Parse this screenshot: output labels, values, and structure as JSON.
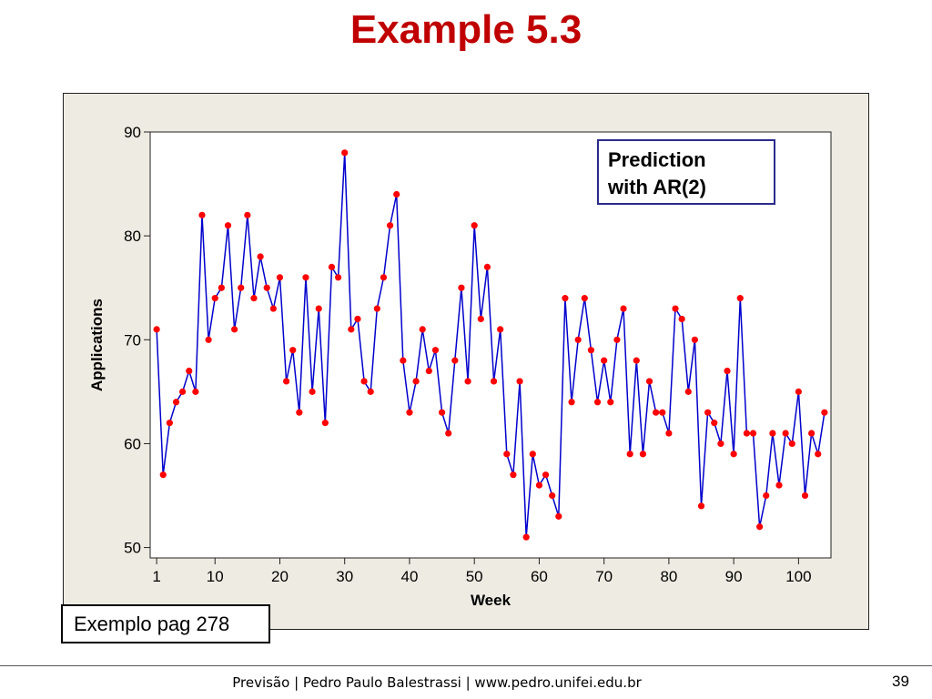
{
  "slide": {
    "title": "Example 5.3",
    "callout_line1": "Prediction",
    "callout_line2": "with AR(2)",
    "note": "Exemplo pag 278",
    "footer": "Previsão | Pedro Paulo Balestrassi | www.pedro.unifei.edu.br",
    "page_number": "39"
  },
  "colors": {
    "title": "#c00000",
    "line": "#0000cc",
    "marker": "#ff0000",
    "frame": "#eeebe2"
  },
  "chart_data": {
    "type": "line",
    "xlabel": "Week",
    "ylabel": "Applications",
    "xlim": [
      0,
      105
    ],
    "ylim": [
      49,
      90
    ],
    "xticks": [
      1,
      10,
      20,
      30,
      40,
      50,
      60,
      70,
      80,
      90,
      100
    ],
    "yticks": [
      50,
      60,
      70,
      80,
      90
    ],
    "grid": false,
    "legend": "none",
    "x": [
      1,
      2,
      3,
      4,
      5,
      6,
      7,
      8,
      9,
      10,
      11,
      12,
      13,
      14,
      15,
      16,
      17,
      18,
      19,
      20,
      21,
      22,
      23,
      24,
      25,
      26,
      27,
      28,
      29,
      30,
      31,
      32,
      33,
      34,
      35,
      36,
      37,
      38,
      39,
      40,
      41,
      42,
      43,
      44,
      45,
      46,
      47,
      48,
      49,
      50,
      51,
      52,
      53,
      54,
      55,
      56,
      57,
      58,
      59,
      60,
      61,
      62,
      63,
      64,
      65,
      66,
      67,
      68,
      69,
      70,
      71,
      72,
      73,
      74,
      75,
      76,
      77,
      78,
      79,
      80,
      81,
      82,
      83,
      84,
      85,
      86,
      87,
      88,
      89,
      90,
      91,
      92,
      93,
      94,
      95,
      96,
      97,
      98,
      99,
      100,
      101,
      102,
      103,
      104
    ],
    "values": [
      71,
      57,
      62,
      64,
      65,
      67,
      65,
      82,
      70,
      74,
      75,
      81,
      71,
      75,
      82,
      74,
      78,
      75,
      73,
      76,
      66,
      69,
      63,
      76,
      65,
      73,
      62,
      77,
      76,
      88,
      71,
      72,
      66,
      65,
      73,
      76,
      81,
      84,
      68,
      63,
      66,
      71,
      67,
      69,
      63,
      61,
      68,
      75,
      66,
      81,
      72,
      77,
      66,
      71,
      59,
      57,
      66,
      51,
      59,
      56,
      57,
      55,
      53,
      74,
      64,
      70,
      74,
      69,
      64,
      68,
      64,
      70,
      73,
      59,
      68,
      59,
      66,
      63,
      63,
      61,
      73,
      72,
      65,
      70,
      54,
      63,
      62,
      60,
      67,
      59,
      74,
      61,
      61,
      52,
      55,
      61,
      56,
      61,
      60,
      65,
      55,
      61,
      59,
      63
    ]
  }
}
